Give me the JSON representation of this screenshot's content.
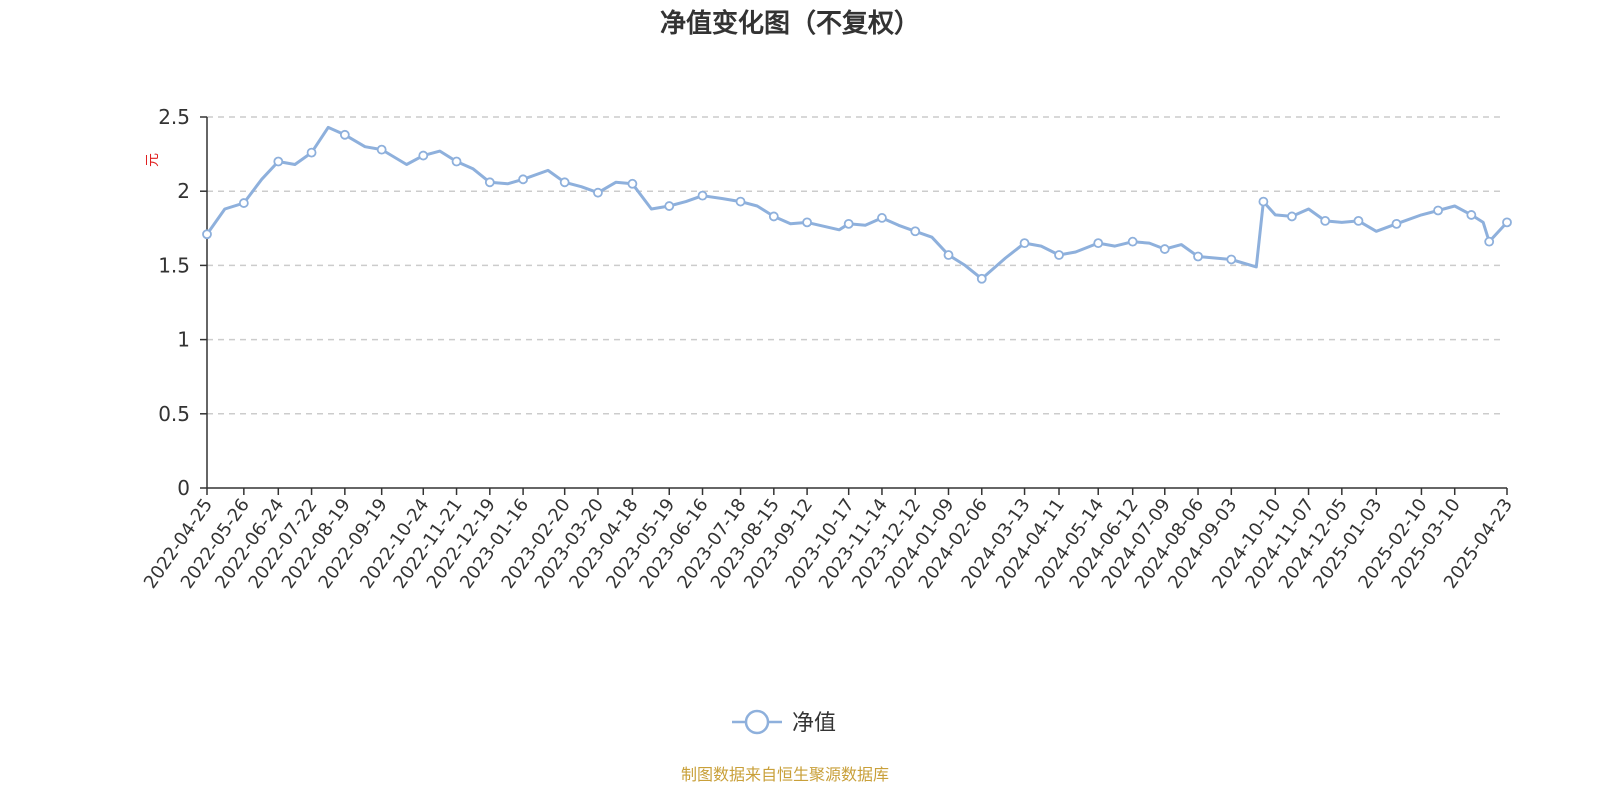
{
  "chart_data": {
    "type": "line",
    "title": "净值变化图（不复权）",
    "ylabel": "元",
    "ylim": [
      0,
      2.5
    ],
    "yticks": [
      "0",
      "0.5",
      "1",
      "1.5",
      "2",
      "2.5"
    ],
    "grid": "horizontal-dashed",
    "legend_position": "bottom-center",
    "x_tick_labels": [
      "2022-04-25",
      "2022-05-26",
      "2022-06-24",
      "2022-07-22",
      "2022-08-19",
      "2022-09-19",
      "2022-10-24",
      "2022-11-21",
      "2022-12-19",
      "2023-01-16",
      "2023-02-20",
      "2023-03-20",
      "2023-04-18",
      "2023-05-19",
      "2023-06-16",
      "2023-07-18",
      "2023-08-15",
      "2023-09-12",
      "2023-10-17",
      "2023-11-14",
      "2023-12-12",
      "2024-01-09",
      "2024-02-06",
      "2024-03-13",
      "2024-04-11",
      "2024-05-14",
      "2024-06-12",
      "2024-07-09",
      "2024-08-06",
      "2024-09-03",
      "2024-10-10",
      "2024-11-07",
      "2024-12-05",
      "2025-01-03",
      "2025-02-10",
      "2025-03-10",
      "2025-04-23"
    ],
    "series": [
      {
        "name": "净值",
        "color": "#8eb0dc",
        "x": [
          "2022-04-25",
          "2022-05-10",
          "2022-05-26",
          "2022-06-10",
          "2022-06-24",
          "2022-07-08",
          "2022-07-22",
          "2022-08-05",
          "2022-08-19",
          "2022-09-05",
          "2022-09-19",
          "2022-10-10",
          "2022-10-24",
          "2022-11-07",
          "2022-11-21",
          "2022-12-05",
          "2022-12-19",
          "2023-01-03",
          "2023-01-16",
          "2023-02-06",
          "2023-02-20",
          "2023-03-06",
          "2023-03-20",
          "2023-04-04",
          "2023-04-18",
          "2023-05-04",
          "2023-05-19",
          "2023-06-02",
          "2023-06-16",
          "2023-07-03",
          "2023-07-18",
          "2023-08-01",
          "2023-08-15",
          "2023-08-29",
          "2023-09-12",
          "2023-10-09",
          "2023-10-17",
          "2023-10-31",
          "2023-11-14",
          "2023-11-28",
          "2023-12-12",
          "2023-12-26",
          "2024-01-09",
          "2024-01-23",
          "2024-02-06",
          "2024-02-26",
          "2024-03-13",
          "2024-03-27",
          "2024-04-11",
          "2024-04-25",
          "2024-05-14",
          "2024-05-28",
          "2024-06-12",
          "2024-06-26",
          "2024-07-09",
          "2024-07-23",
          "2024-08-06",
          "2024-08-20",
          "2024-09-03",
          "2024-09-24",
          "2024-09-30",
          "2024-10-10",
          "2024-10-24",
          "2024-11-07",
          "2024-11-21",
          "2024-12-05",
          "2024-12-19",
          "2025-01-03",
          "2025-01-20",
          "2025-02-10",
          "2025-02-24",
          "2025-03-10",
          "2025-03-24",
          "2025-04-03",
          "2025-04-08",
          "2025-04-23"
        ],
        "values": [
          1.71,
          1.88,
          1.92,
          2.08,
          2.2,
          2.18,
          2.26,
          2.43,
          2.38,
          2.3,
          2.28,
          2.18,
          2.24,
          2.27,
          2.2,
          2.15,
          2.06,
          2.05,
          2.08,
          2.14,
          2.06,
          2.03,
          1.99,
          2.06,
          2.05,
          1.88,
          1.9,
          1.93,
          1.97,
          1.95,
          1.93,
          1.9,
          1.83,
          1.78,
          1.79,
          1.74,
          1.78,
          1.77,
          1.82,
          1.77,
          1.73,
          1.69,
          1.57,
          1.5,
          1.41,
          1.55,
          1.65,
          1.63,
          1.57,
          1.59,
          1.65,
          1.63,
          1.66,
          1.65,
          1.61,
          1.64,
          1.56,
          1.55,
          1.54,
          1.49,
          1.93,
          1.84,
          1.83,
          1.88,
          1.8,
          1.79,
          1.8,
          1.73,
          1.78,
          1.84,
          1.87,
          1.9,
          1.84,
          1.79,
          1.66,
          1.79
        ]
      }
    ]
  },
  "legend": {
    "label": "净值"
  },
  "source_note": "制图数据来自恒生聚源数据库"
}
